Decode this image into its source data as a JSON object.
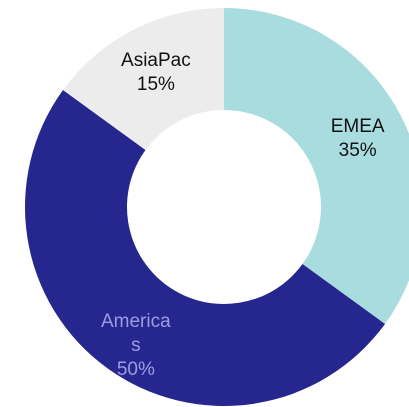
{
  "chart_data": {
    "type": "donut",
    "categories": [
      "EMEA",
      "Americas",
      "AsiaPac"
    ],
    "values": [
      35,
      50,
      15
    ],
    "value_labels": [
      "35%",
      "50%",
      "15%"
    ],
    "colors": [
      "#a9dcdf",
      "#26268f",
      "#ececec"
    ],
    "label_colors": [
      "#111111",
      "#9c9ce0",
      "#111111"
    ],
    "start_angle": 0,
    "direction": "clockwise"
  }
}
